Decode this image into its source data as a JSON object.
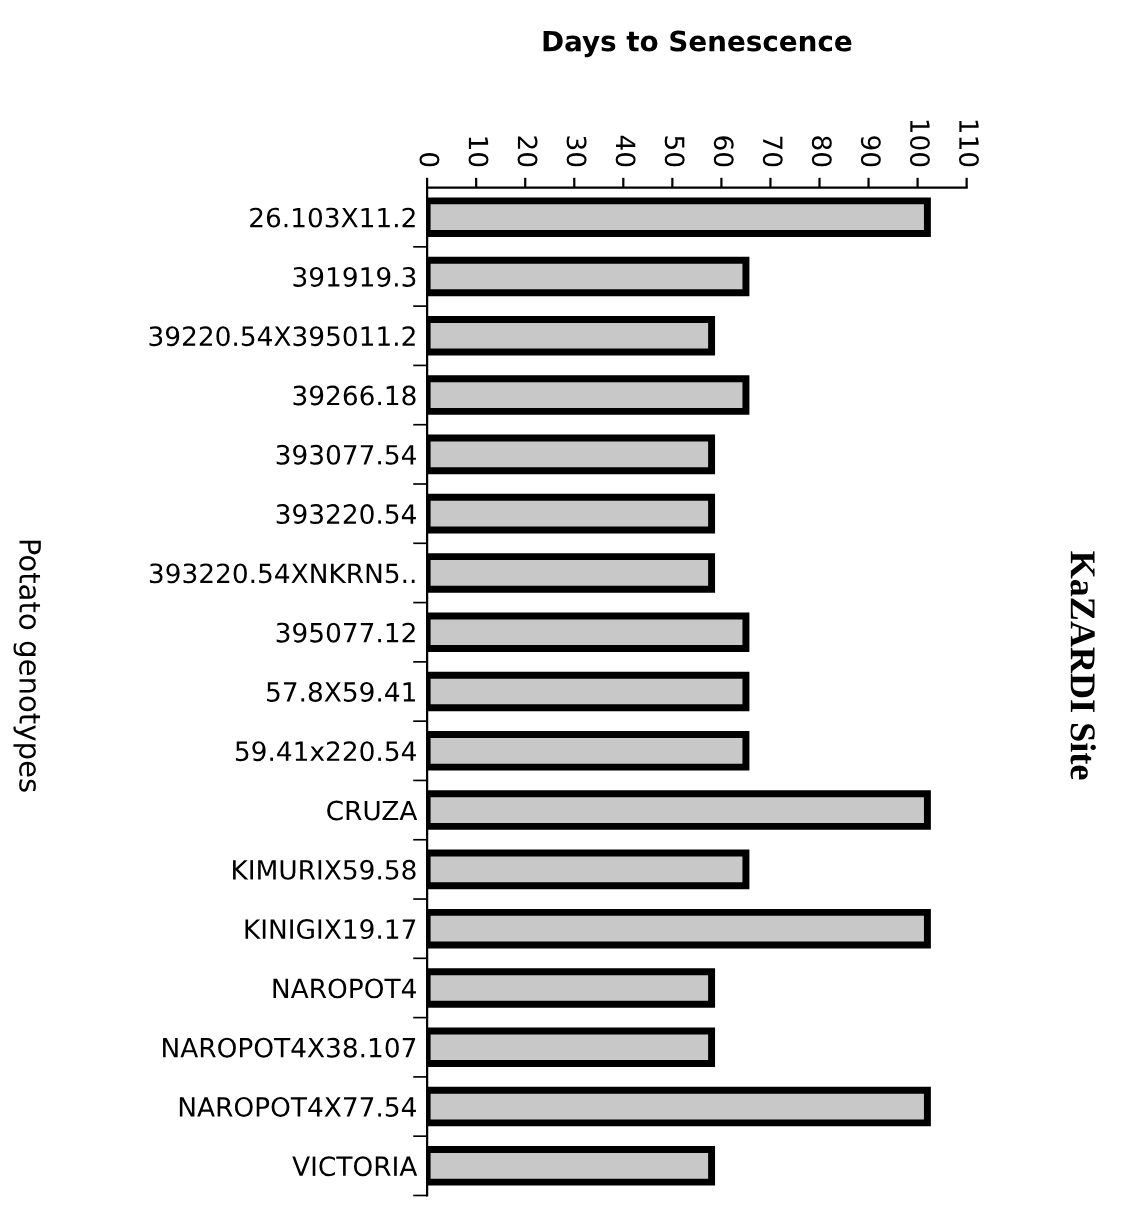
{
  "chart_data": {
    "type": "bar",
    "orientation": "horizontal",
    "title": "Days to Senescence",
    "ylabel": "Potato genotypes",
    "annotations": [
      "KaZARDI Site"
    ],
    "categories": [
      "26.103X11.2",
      "391919.3",
      "39220.54X395011.2",
      "39266.18",
      "393077.54",
      "393220.54",
      "393220.54XNKRN5..",
      "395077.12",
      "57.8X59.41",
      "59.41x220.54",
      "CRUZA",
      "KIMURIX59.58",
      "KINIGIX19.17",
      "NAROPOT4",
      "NAROPOT4X38.107",
      "NAROPOT4X77.54",
      "VICTORIA"
    ],
    "values": [
      102,
      65,
      58,
      65,
      58,
      58,
      58,
      65,
      65,
      65,
      102,
      65,
      102,
      58,
      58,
      102,
      58
    ],
    "color": "#c8c8c8",
    "xlim": [
      0,
      110
    ],
    "xticks": [
      0,
      10,
      20,
      30,
      40,
      50,
      60,
      70,
      80,
      90,
      100,
      110
    ],
    "grid": false,
    "legend": false
  }
}
